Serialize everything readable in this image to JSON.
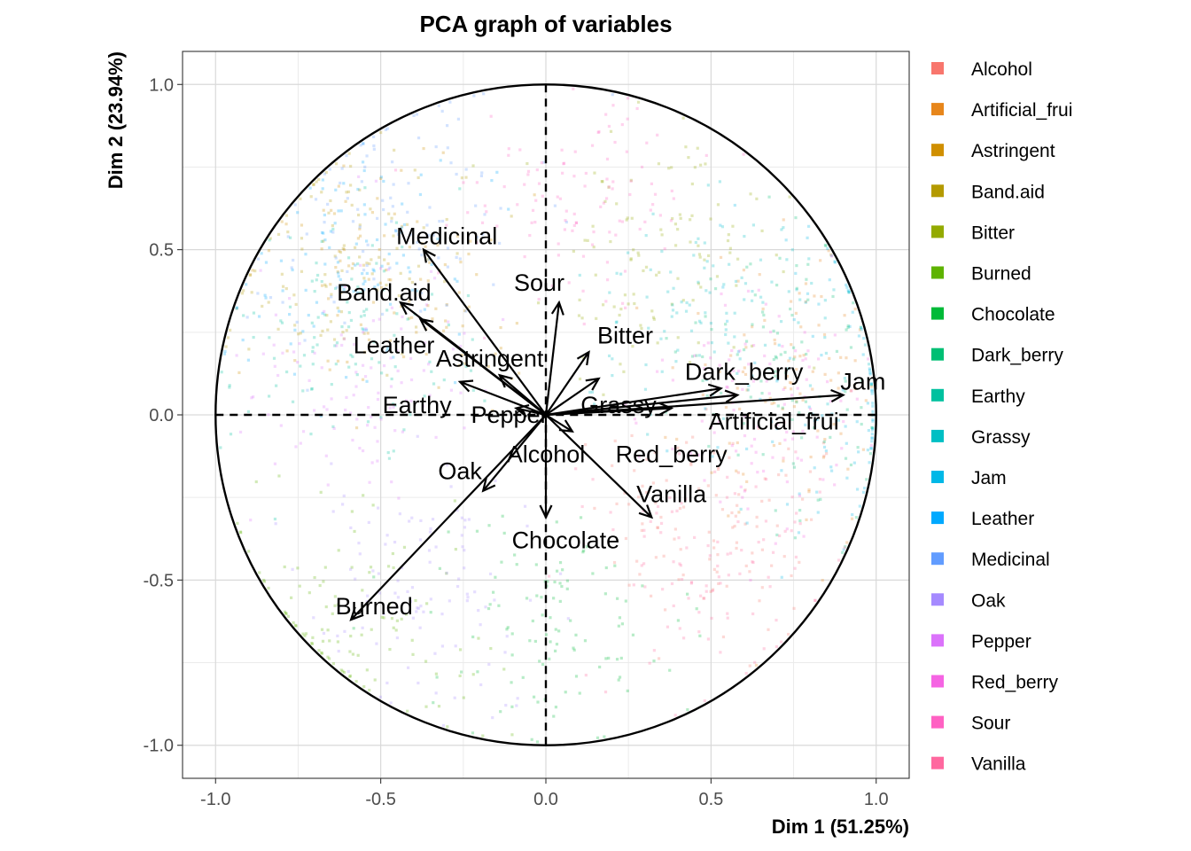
{
  "chart_data": {
    "type": "scatter",
    "title": "PCA graph of variables",
    "xlabel": "Dim 1 (51.25%)",
    "ylabel": "Dim 2 (23.94%)",
    "xlim": [
      -1.1,
      1.1
    ],
    "ylim": [
      -1.1,
      1.1
    ],
    "x_ticks": [
      "-1.0",
      "-0.5",
      "0.0",
      "0.5",
      "1.0"
    ],
    "y_ticks": [
      "-1.0",
      "-0.5",
      "0.0",
      "0.5",
      "1.0"
    ],
    "grid": true,
    "legend_position": "right",
    "circle_radius": 1.0,
    "variables": [
      {
        "name": "Alcohol",
        "label": "Alcohol",
        "x": 0.08,
        "y": -0.05,
        "label_x": 0.0,
        "label_y": -0.12,
        "color": "#F8766D"
      },
      {
        "name": "Artificial_frui",
        "label": "Artificial_frui",
        "x": 0.58,
        "y": 0.06,
        "label_x": 0.69,
        "label_y": -0.02,
        "color": "#E7861B"
      },
      {
        "name": "Astringent",
        "label": "Astringent",
        "x": -0.14,
        "y": 0.12,
        "label_x": -0.17,
        "label_y": 0.17,
        "color": "#D08F00"
      },
      {
        "name": "Band.aid",
        "label": "Band.aid",
        "x": -0.44,
        "y": 0.34,
        "label_x": -0.49,
        "label_y": 0.37,
        "color": "#B49A00"
      },
      {
        "name": "Bitter",
        "label": "Bitter",
        "x": 0.13,
        "y": 0.19,
        "label_x": 0.24,
        "label_y": 0.24,
        "color": "#93AA00"
      },
      {
        "name": "Burned",
        "label": "Burned",
        "x": -0.59,
        "y": -0.62,
        "label_x": -0.52,
        "label_y": -0.58,
        "color": "#5EB300"
      },
      {
        "name": "Chocolate",
        "label": "Chocolate",
        "x": 0.0,
        "y": -0.31,
        "label_x": 0.06,
        "label_y": -0.38,
        "color": "#00BA38"
      },
      {
        "name": "Dark_berry",
        "label": "Dark_berry",
        "x": 0.53,
        "y": 0.08,
        "label_x": 0.6,
        "label_y": 0.13,
        "color": "#00BF74"
      },
      {
        "name": "Earthy",
        "label": "Earthy",
        "x": -0.26,
        "y": 0.1,
        "label_x": -0.39,
        "label_y": 0.03,
        "color": "#00C19F"
      },
      {
        "name": "Grassy",
        "label": "Grassy",
        "x": 0.16,
        "y": 0.11,
        "label_x": 0.22,
        "label_y": 0.03,
        "color": "#00BFC4"
      },
      {
        "name": "Jam",
        "label": "Jam",
        "x": 0.9,
        "y": 0.06,
        "label_x": 0.96,
        "label_y": 0.1,
        "color": "#00B8E7"
      },
      {
        "name": "Leather",
        "label": "Leather",
        "x": -0.38,
        "y": 0.29,
        "label_x": -0.46,
        "label_y": 0.21,
        "color": "#00A9FF"
      },
      {
        "name": "Medicinal",
        "label": "Medicinal",
        "x": -0.37,
        "y": 0.5,
        "label_x": -0.3,
        "label_y": 0.54,
        "color": "#619CFF"
      },
      {
        "name": "Oak",
        "label": "Oak",
        "x": -0.19,
        "y": -0.23,
        "label_x": -0.26,
        "label_y": -0.17,
        "color": "#A58AFF"
      },
      {
        "name": "Pepper",
        "label": "Pepper",
        "x": -0.09,
        "y": 0.02,
        "label_x": -0.11,
        "label_y": -0.0,
        "color": "#DB72FB"
      },
      {
        "name": "Red_berry",
        "label": "Red_berry",
        "x": 0.38,
        "y": 0.02,
        "label_x": 0.38,
        "label_y": -0.12,
        "color": "#F564E3"
      },
      {
        "name": "Sour",
        "label": "Sour",
        "x": 0.04,
        "y": 0.34,
        "label_x": -0.02,
        "label_y": 0.4,
        "color": "#FF61C3"
      },
      {
        "name": "Vanilla",
        "label": "Vanilla",
        "x": 0.32,
        "y": -0.31,
        "label_x": 0.38,
        "label_y": -0.24,
        "color": "#FF689F"
      }
    ]
  }
}
